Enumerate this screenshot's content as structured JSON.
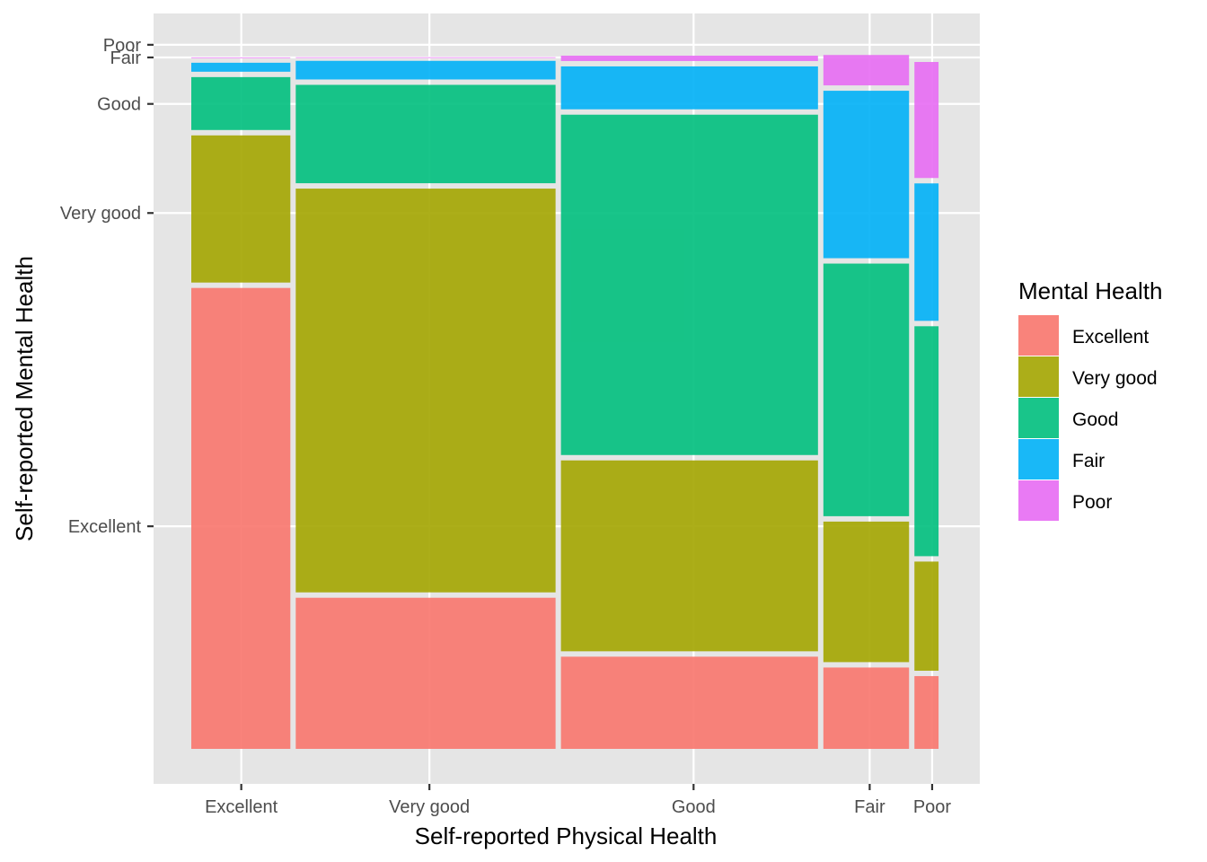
{
  "chart_data": {
    "type": "mosaic",
    "xlabel": "Self-reported Physical Health",
    "ylabel": "Self-reported Mental Health",
    "grid": true,
    "legend_position": "right",
    "legend": {
      "title": "Mental Health",
      "entries": [
        {
          "label": "Excellent",
          "color": "#F8766D"
        },
        {
          "label": "Very good",
          "color": "#A3A500"
        },
        {
          "label": "Good",
          "color": "#00BF7D"
        },
        {
          "label": "Fair",
          "color": "#00B0F6"
        },
        {
          "label": "Poor",
          "color": "#E76BF3"
        }
      ]
    },
    "x_categories": [
      "Excellent",
      "Very good",
      "Good",
      "Fair",
      "Poor"
    ],
    "x_widths": [
      0.1388,
      0.3524,
      0.3487,
      0.121,
      0.0392
    ],
    "y_categories": [
      "Excellent",
      "Very good",
      "Good",
      "Fair",
      "Poor"
    ],
    "y_tick_positions": [
      0.32,
      0.765,
      0.92,
      0.986,
      1.004
    ],
    "x_tick_positions": [
      0.07,
      0.32,
      0.671,
      0.905,
      0.988
    ],
    "segments": [
      {
        "x": "Excellent",
        "proportions": [
          0.6624,
          0.2167,
          0.0828,
          0.0204,
          0.0076
        ]
      },
      {
        "x": "Very good",
        "proportions": [
          0.2223,
          0.5812,
          0.1474,
          0.0341,
          0.0051
        ]
      },
      {
        "x": "Good",
        "proportions": [
          0.1386,
          0.2788,
          0.4911,
          0.0686,
          0.0152
        ]
      },
      {
        "x": "Fair",
        "proportions": [
          0.1232,
          0.2073,
          0.3665,
          0.2455,
          0.0508
        ]
      },
      {
        "x": "Poor",
        "proportions": [
          0.111,
          0.1627,
          0.3343,
          0.2029,
          0.1725
        ]
      }
    ]
  }
}
